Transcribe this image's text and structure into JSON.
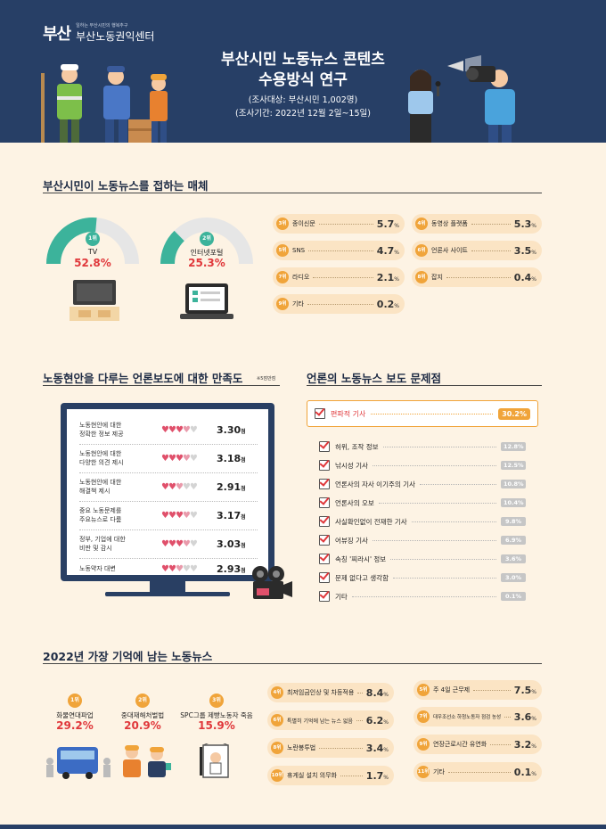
{
  "header": {
    "org_tagline": "일하는 부산시민의 행복추구",
    "org_name": "부산노동권익센터",
    "logo_mark": "부산",
    "title_line1": "부산시민 노동뉴스 콘텐츠",
    "title_line2": "수용방식 연구",
    "survey_target": "(조사대상: 부산시민 1,002명)",
    "survey_period": "(조사기간: 2022년 12월 2일~15일)"
  },
  "media": {
    "title": "부산시민이 노동뉴스를 접하는 매체",
    "top": [
      {
        "rank": "1위",
        "label": "TV",
        "value": "52.8%",
        "pct": 52.8
      },
      {
        "rank": "2위",
        "label": "인터넷포털",
        "value": "25.3%",
        "pct": 25.3
      }
    ],
    "others": [
      {
        "rank": "3위",
        "label": "종이신문",
        "value": "5.7",
        "unit": "%"
      },
      {
        "rank": "4위",
        "label": "동영상 플랫폼",
        "value": "5.3",
        "unit": "%"
      },
      {
        "rank": "5위",
        "label": "SNS",
        "value": "4.7",
        "unit": "%"
      },
      {
        "rank": "6위",
        "label": "언론사 사이트",
        "value": "3.5",
        "unit": "%"
      },
      {
        "rank": "7위",
        "label": "라디오",
        "value": "2.1",
        "unit": "%"
      },
      {
        "rank": "8위",
        "label": "잡지",
        "value": "0.4",
        "unit": "%"
      },
      {
        "rank": "9위",
        "label": "기타",
        "value": "0.2",
        "unit": "%"
      }
    ]
  },
  "satisfaction": {
    "title": "노동현안을 다루는 언론보도에 대한 만족도",
    "note": "※5점만점",
    "items": [
      {
        "label": "노동현안에 대한\n정확한 정보 제공",
        "value": "3.30",
        "unit": "점",
        "score": 3.3
      },
      {
        "label": "노동현안에 대한\n다양한 의견 제시",
        "value": "3.18",
        "unit": "점",
        "score": 3.18
      },
      {
        "label": "노동현안에 대한\n해결책 제시",
        "value": "2.91",
        "unit": "점",
        "score": 2.91
      },
      {
        "label": "중요 노동문제를\n주요뉴스로 다룸",
        "value": "3.17",
        "unit": "점",
        "score": 3.17
      },
      {
        "label": "정부, 기업에 대한\n비판 및 감시",
        "value": "3.03",
        "unit": "점",
        "score": 3.03
      },
      {
        "label": "노동약자 대변",
        "value": "2.93",
        "unit": "점",
        "score": 2.93
      }
    ]
  },
  "problems": {
    "title": "언론의 노동뉴스 보도 문제점",
    "top": {
      "label": "편파적 기사",
      "value": "30.2%"
    },
    "items": [
      {
        "label": "허위, 조작 정보",
        "value": "12.8%"
      },
      {
        "label": "낚시성 기사",
        "value": "12.5%"
      },
      {
        "label": "언론사의 자사 이기주의 기사",
        "value": "10.8%"
      },
      {
        "label": "언론사의 오보",
        "value": "10.4%"
      },
      {
        "label": "사실확인없이 전재한 기사",
        "value": "9.8%"
      },
      {
        "label": "어뷰징 기사",
        "value": "6.9%"
      },
      {
        "label": "속칭 '찌라시' 정보",
        "value": "3.6%"
      },
      {
        "label": "문제 없다고 생각함",
        "value": "3.0%"
      },
      {
        "label": "기타",
        "value": "0.1%"
      }
    ]
  },
  "news": {
    "title": "2022년 가장 기억에 남는 노동뉴스",
    "top": [
      {
        "rank": "1위",
        "label": "화물연대파업",
        "value": "29.2%"
      },
      {
        "rank": "2위",
        "label": "중대재해처벌법",
        "value": "20.9%"
      },
      {
        "rank": "3위",
        "label": "SPC그룹 제빵노동자 죽음",
        "value": "15.9%"
      }
    ],
    "others": [
      {
        "rank": "4위",
        "label": "최저임금인상 및 차등적용",
        "value": "8.4",
        "unit": "%"
      },
      {
        "rank": "5위",
        "label": "주 4일 근무제",
        "value": "7.5",
        "unit": "%"
      },
      {
        "rank": "6위",
        "label": "특별히 기억에 남는 뉴스 없음",
        "value": "6.2",
        "unit": "%"
      },
      {
        "rank": "7위",
        "label": "대우조선소 하청노동자 점검 농성",
        "value": "3.6",
        "unit": "%"
      },
      {
        "rank": "8위",
        "label": "노란봉투법",
        "value": "3.4",
        "unit": "%"
      },
      {
        "rank": "9위",
        "label": "연장근로시간 유연화",
        "value": "3.2",
        "unit": "%"
      },
      {
        "rank": "10위",
        "label": "휴게실 설치 의무화",
        "value": "1.7",
        "unit": "%"
      },
      {
        "rank": "11위",
        "label": "기타",
        "value": "0.1",
        "unit": "%"
      }
    ]
  },
  "colors": {
    "header": "#273f66",
    "accent_green": "#3cb39b",
    "accent_orange": "#f0a43a",
    "highlight_red": "#e0383b",
    "background": "#fdf3e4"
  }
}
